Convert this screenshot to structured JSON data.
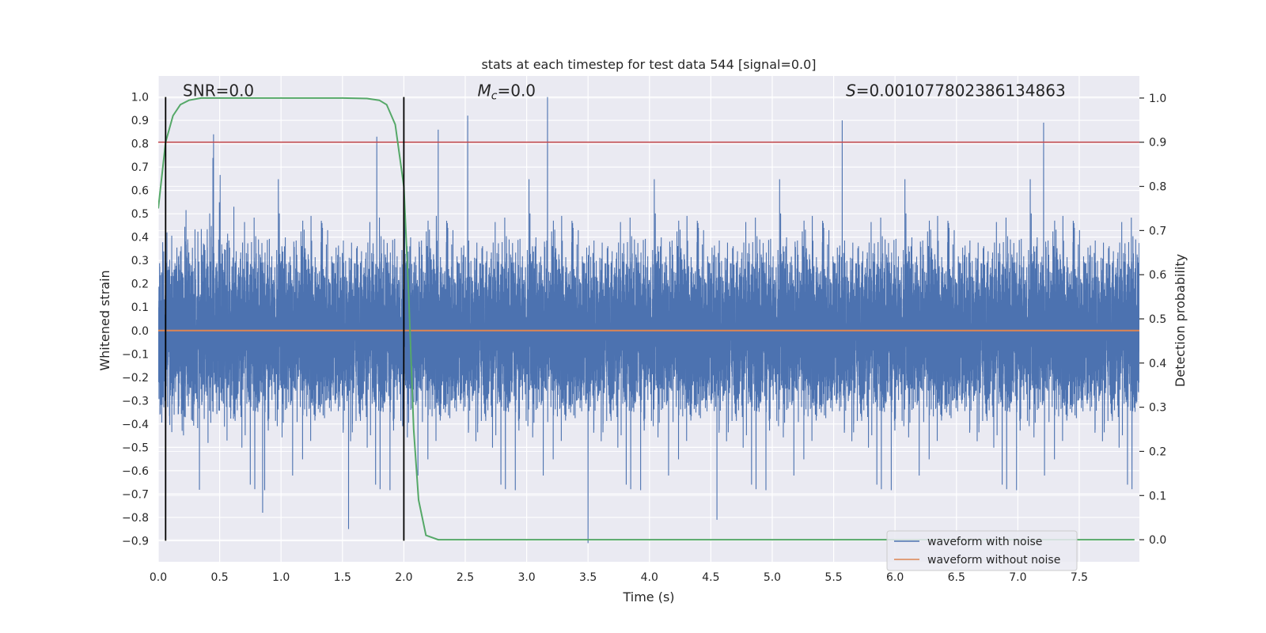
{
  "chart_data": {
    "type": "line",
    "title": "stats at each timestep for test data 544 [signal=0.0]",
    "xlabel": "Time (s)",
    "ylabel": "Whitened strain",
    "y2label": "Detection probability",
    "xlim": [
      0.0,
      7.99
    ],
    "ylim": [
      -0.99,
      1.09
    ],
    "y2lim": [
      -0.05,
      1.05
    ],
    "x_ticks": [
      0.0,
      0.5,
      1.0,
      1.5,
      2.0,
      2.5,
      3.0,
      3.5,
      4.0,
      4.5,
      5.0,
      5.5,
      6.0,
      6.5,
      7.0,
      7.5
    ],
    "x_tick_labels": [
      "0.0",
      "0.5",
      "1.0",
      "1.5",
      "2.0",
      "2.5",
      "3.0",
      "3.5",
      "4.0",
      "4.5",
      "5.0",
      "5.5",
      "6.0",
      "6.5",
      "7.0",
      "7.5"
    ],
    "y_ticks": [
      -0.9,
      -0.8,
      -0.7,
      -0.6,
      -0.5,
      -0.4,
      -0.3,
      -0.2,
      -0.1,
      0.0,
      0.1,
      0.2,
      0.3,
      0.4,
      0.5,
      0.6,
      0.7,
      0.8,
      0.9,
      1.0
    ],
    "y_tick_labels": [
      "−0.9",
      "−0.8",
      "−0.7",
      "−0.6",
      "−0.5",
      "−0.4",
      "−0.3",
      "−0.2",
      "−0.1",
      "0.0",
      "0.1",
      "0.2",
      "0.3",
      "0.4",
      "0.5",
      "0.6",
      "0.7",
      "0.8",
      "0.9",
      "1.0"
    ],
    "y2_ticks": [
      0.0,
      0.1,
      0.2,
      0.3,
      0.4,
      0.5,
      0.6,
      0.7,
      0.8,
      0.9,
      1.0
    ],
    "y2_tick_labels": [
      "0.0",
      "0.1",
      "0.2",
      "0.3",
      "0.4",
      "0.5",
      "0.6",
      "0.7",
      "0.8",
      "0.9",
      "1.0"
    ],
    "grid": true,
    "legend_position": "bottom-right",
    "annotations": [
      {
        "id": "snr",
        "text": "SNR=0.0",
        "x": 0.2,
        "y": 1.0
      },
      {
        "id": "mc",
        "text": "M_c=0.0",
        "x": 2.6,
        "y": 1.0
      },
      {
        "id": "s",
        "text": "S=0.001077802386134863",
        "x": 5.6,
        "y": 1.0
      }
    ],
    "vertical_lines": {
      "x": [
        0.06,
        2.0
      ],
      "ymin": -0.9,
      "ymax": 1.0,
      "color": "#000000"
    },
    "threshold_line": {
      "axis": "y2",
      "value": 0.9,
      "color": "#c44e52"
    },
    "series": [
      {
        "name": "waveform with noise",
        "axis": "y",
        "color": "#4c72b0",
        "noise_model": {
          "sample_rate_hz": 2048,
          "envelope_typical": 0.4,
          "peaks": [
            {
              "x": 0.45,
              "y": 0.84
            },
            {
              "x": 1.78,
              "y": 0.83
            },
            {
              "x": 2.28,
              "y": 0.86
            },
            {
              "x": 2.52,
              "y": 0.92
            },
            {
              "x": 3.17,
              "y": 1.0
            },
            {
              "x": 5.57,
              "y": 0.9
            },
            {
              "x": 7.21,
              "y": 0.89
            },
            {
              "x": 3.5,
              "y": -0.91
            },
            {
              "x": 1.55,
              "y": -0.85
            },
            {
              "x": 0.85,
              "y": -0.78
            },
            {
              "x": 4.55,
              "y": -0.81
            }
          ]
        }
      },
      {
        "name": "waveform without noise",
        "axis": "y",
        "color": "#dd8452",
        "x": [
          0.0,
          7.99
        ],
        "y": [
          0.0,
          0.0
        ]
      },
      {
        "name": "detection probability",
        "axis": "y2",
        "color": "#55a868",
        "x": [
          0.0,
          0.06,
          0.12,
          0.18,
          0.25,
          0.35,
          0.5,
          1.0,
          1.5,
          1.7,
          1.8,
          1.86,
          1.93,
          2.0,
          2.04,
          2.08,
          2.12,
          2.18,
          2.28,
          2.5,
          5.0,
          7.95
        ],
        "y": [
          0.75,
          0.9,
          0.96,
          0.985,
          0.995,
          1.0,
          1.0,
          1.0,
          1.0,
          0.999,
          0.995,
          0.985,
          0.94,
          0.8,
          0.55,
          0.25,
          0.09,
          0.01,
          0.0,
          0.0,
          0.0,
          0.0
        ]
      }
    ],
    "legend": [
      "waveform with noise",
      "waveform without noise"
    ]
  }
}
